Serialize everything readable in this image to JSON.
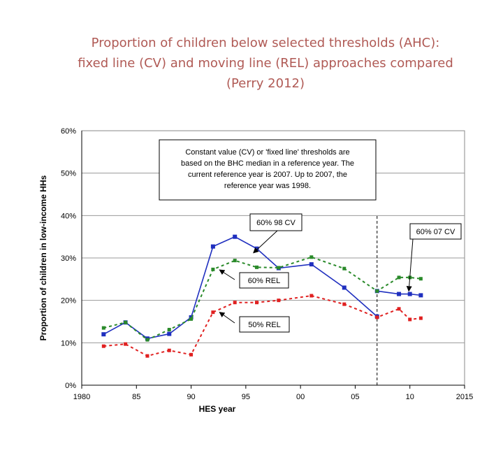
{
  "title_lines": [
    "Proportion of children below selected thresholds (AHC):",
    "fixed line (CV) and moving line (REL) approaches compared",
    "(Perry 2012)"
  ],
  "chart_data": {
    "type": "line",
    "xlabel": "HES year",
    "ylabel": "Proportion of children in low-income HHs",
    "xlim": [
      1980,
      2015
    ],
    "ylim": [
      0,
      60
    ],
    "x_ticks": [
      1980,
      1985,
      1990,
      1995,
      2000,
      2005,
      2010,
      2015
    ],
    "x_tick_labels": [
      "1980",
      "85",
      "90",
      "95",
      "00",
      "05",
      "10",
      "2015"
    ],
    "y_ticks": [
      0,
      10,
      20,
      30,
      40,
      50,
      60
    ],
    "y_tick_labels": [
      "0%",
      "10%",
      "20%",
      "30%",
      "40%",
      "50%",
      "60%"
    ],
    "grid": "horizontal",
    "reference_line_x": 2007,
    "series": [
      {
        "name": "60% 98 CV",
        "color": "#1f2fbf",
        "dash": "solid",
        "x": [
          1982,
          1984,
          1986,
          1988,
          1990,
          1992,
          1994,
          1996,
          1998,
          2001,
          2004,
          2007
        ],
        "y": [
          12,
          14.8,
          11,
          12.1,
          16,
          32.7,
          35,
          32.2,
          27.6,
          28.5,
          23,
          16.2
        ]
      },
      {
        "name": "60% 07 CV",
        "color": "#1f2fbf",
        "dash": "solid",
        "x": [
          2007,
          2009,
          2010,
          2011
        ],
        "y": [
          22.2,
          21.5,
          21.5,
          21.2
        ]
      },
      {
        "name": "60% REL",
        "color": "#2a8a2a",
        "dash": "dashed",
        "x": [
          1982,
          1984,
          1986,
          1988,
          1990,
          1992,
          1994,
          1996,
          1998,
          2001,
          2004,
          2007,
          2009,
          2010,
          2011
        ],
        "y": [
          13.5,
          14.8,
          10.7,
          13.1,
          15.6,
          27.3,
          29.4,
          27.8,
          27.7,
          30.2,
          27.5,
          22.2,
          25.4,
          25.4,
          25.1
        ]
      },
      {
        "name": "50% REL",
        "color": "#e02020",
        "dash": "dashed",
        "x": [
          1982,
          1984,
          1986,
          1988,
          1990,
          1992,
          1994,
          1996,
          1998,
          2001,
          2004,
          2007,
          2009,
          2010,
          2011
        ],
        "y": [
          9.2,
          9.7,
          6.9,
          8.2,
          7.2,
          17.2,
          19.5,
          19.5,
          20,
          21.1,
          19.1,
          16,
          18,
          15.5,
          15.8
        ]
      }
    ],
    "annotations": {
      "note_lines": [
        "Constant value (CV) or 'fixed line' thresholds are",
        "based on the BHC median in a reference year. The",
        "current reference year is 2007.  Up to 2007, the",
        "reference year was 1998."
      ],
      "labels": [
        {
          "text": "60% 98 CV",
          "arrow_to": [
            1995.7,
            31.2
          ]
        },
        {
          "text": "60% 07 CV",
          "arrow_to": [
            2009.9,
            22.2
          ]
        },
        {
          "text": "60% REL",
          "arrow_to": [
            1992.6,
            27.2
          ]
        },
        {
          "text": "50% REL",
          "arrow_to": [
            1992.6,
            17.2
          ]
        }
      ]
    }
  }
}
